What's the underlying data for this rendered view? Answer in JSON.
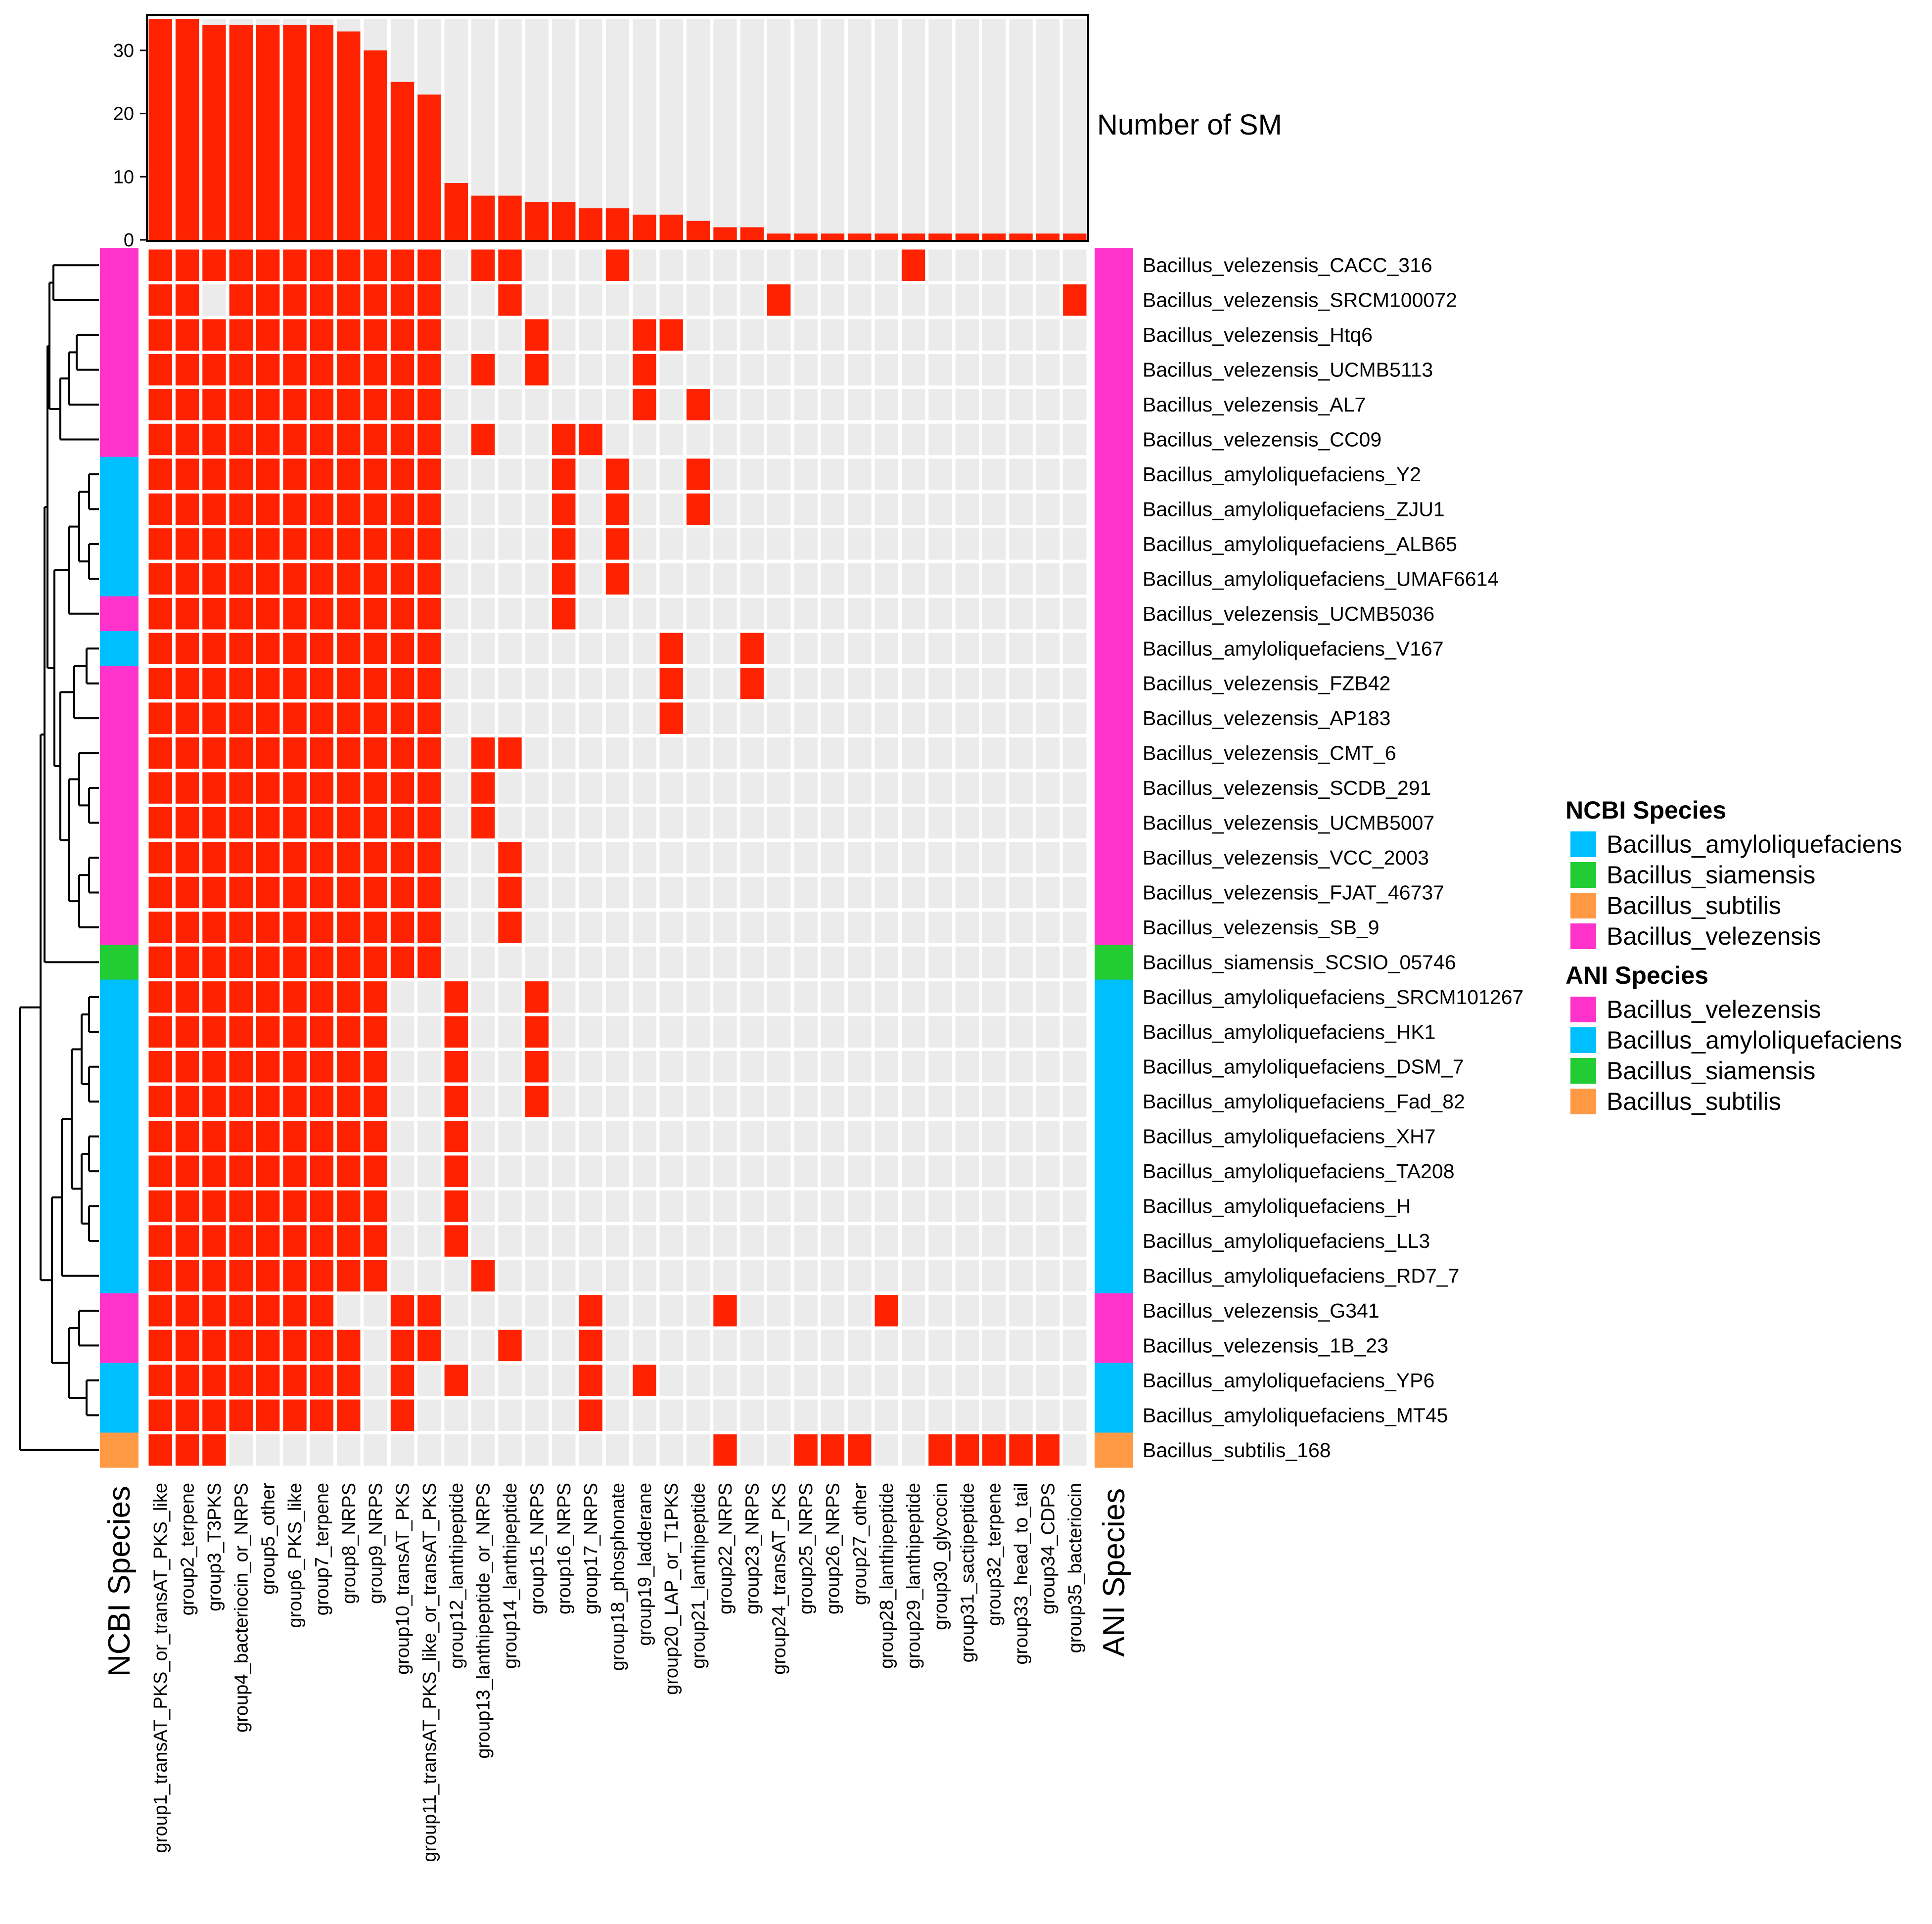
{
  "chart_data": {
    "type": "heatmap",
    "title": "",
    "colors": {
      "present": "#FF2200",
      "absent": "#EBEBEB",
      "bar": "#FF2200",
      "bar_background": "#EBEBEB",
      "species": {
        "Bacillus_amyloliquefaciens": "#00BFFF",
        "Bacillus_siamensis": "#22CC33",
        "Bacillus_subtilis": "#FF9944",
        "Bacillus_velezensis": "#FF33CC"
      }
    },
    "columns": [
      "group1_transAT_PKS_or_transAT_PKS_like",
      "group2_terpene",
      "group3_T3PKS",
      "group4_bacteriocin_or_NRPS",
      "group5_other",
      "group6_PKS_like",
      "group7_terpene",
      "group8_NRPS",
      "group9_NRPS",
      "group10_transAT_PKS",
      "group11_transAT_PKS_like_or_transAT_PKS",
      "group12_lanthipeptide",
      "group13_lanthipeptide_or_NRPS",
      "group14_lanthipeptide",
      "group15_NRPS",
      "group16_NRPS",
      "group17_NRPS",
      "group18_phosphonate",
      "group19_ladderane",
      "group20_LAP_or_T1PKS",
      "group21_lanthipeptide",
      "group22_NRPS",
      "group23_NRPS",
      "group24_transAT_PKS",
      "group25_NRPS",
      "group26_NRPS",
      "group27_other",
      "group28_lanthipeptide",
      "group29_lanthipeptide",
      "group30_glycocin",
      "group31_sactipeptide",
      "group32_terpene",
      "group33_head_to_tail",
      "group34_CDPS",
      "group35_bacteriocin"
    ],
    "bar_chart": {
      "ylabel": "Number of SM",
      "ylim": [
        0,
        35
      ],
      "yticks": [
        "0",
        "10",
        "20",
        "30"
      ],
      "values": [
        35,
        35,
        34,
        34,
        34,
        34,
        34,
        33,
        30,
        25,
        23,
        9,
        7,
        7,
        6,
        6,
        5,
        5,
        4,
        4,
        3,
        2,
        2,
        1,
        1,
        1,
        1,
        1,
        1,
        1,
        1,
        1,
        1,
        1,
        1
      ]
    },
    "rows": [
      {
        "label": "Bacillus_velezensis_CACC_316",
        "ncbi": "Bacillus_velezensis",
        "ani": "Bacillus_velezensis",
        "present": [
          1,
          2,
          3,
          4,
          5,
          6,
          7,
          8,
          9,
          10,
          11,
          13,
          14,
          18,
          29
        ]
      },
      {
        "label": "Bacillus_velezensis_SRCM100072",
        "ncbi": "Bacillus_velezensis",
        "ani": "Bacillus_velezensis",
        "present": [
          1,
          2,
          4,
          5,
          6,
          7,
          8,
          9,
          10,
          11,
          14,
          24,
          35
        ]
      },
      {
        "label": "Bacillus_velezensis_Htq6",
        "ncbi": "Bacillus_velezensis",
        "ani": "Bacillus_velezensis",
        "present": [
          1,
          2,
          3,
          4,
          5,
          6,
          7,
          8,
          9,
          10,
          11,
          15,
          19,
          20
        ]
      },
      {
        "label": "Bacillus_velezensis_UCMB5113",
        "ncbi": "Bacillus_velezensis",
        "ani": "Bacillus_velezensis",
        "present": [
          1,
          2,
          3,
          4,
          5,
          6,
          7,
          8,
          9,
          10,
          11,
          13,
          15,
          19
        ]
      },
      {
        "label": "Bacillus_velezensis_AL7",
        "ncbi": "Bacillus_velezensis",
        "ani": "Bacillus_velezensis",
        "present": [
          1,
          2,
          3,
          4,
          5,
          6,
          7,
          8,
          9,
          10,
          11,
          19,
          21
        ]
      },
      {
        "label": "Bacillus_velezensis_CC09",
        "ncbi": "Bacillus_velezensis",
        "ani": "Bacillus_velezensis",
        "present": [
          1,
          2,
          3,
          4,
          5,
          6,
          7,
          8,
          9,
          10,
          11,
          13,
          16,
          17
        ]
      },
      {
        "label": "Bacillus_amyloliquefaciens_Y2",
        "ncbi": "Bacillus_amyloliquefaciens",
        "ani": "Bacillus_velezensis",
        "present": [
          1,
          2,
          3,
          4,
          5,
          6,
          7,
          8,
          9,
          10,
          11,
          16,
          18,
          21
        ]
      },
      {
        "label": "Bacillus_amyloliquefaciens_ZJU1",
        "ncbi": "Bacillus_amyloliquefaciens",
        "ani": "Bacillus_velezensis",
        "present": [
          1,
          2,
          3,
          4,
          5,
          6,
          7,
          8,
          9,
          10,
          11,
          16,
          18,
          21
        ]
      },
      {
        "label": "Bacillus_amyloliquefaciens_ALB65",
        "ncbi": "Bacillus_amyloliquefaciens",
        "ani": "Bacillus_velezensis",
        "present": [
          1,
          2,
          3,
          4,
          5,
          6,
          7,
          8,
          9,
          10,
          11,
          16,
          18
        ]
      },
      {
        "label": "Bacillus_amyloliquefaciens_UMAF6614",
        "ncbi": "Bacillus_amyloliquefaciens",
        "ani": "Bacillus_velezensis",
        "present": [
          1,
          2,
          3,
          4,
          5,
          6,
          7,
          8,
          9,
          10,
          11,
          16,
          18
        ]
      },
      {
        "label": "Bacillus_velezensis_UCMB5036",
        "ncbi": "Bacillus_velezensis",
        "ani": "Bacillus_velezensis",
        "present": [
          1,
          2,
          3,
          4,
          5,
          6,
          7,
          8,
          9,
          10,
          11,
          16
        ]
      },
      {
        "label": "Bacillus_amyloliquefaciens_V167",
        "ncbi": "Bacillus_amyloliquefaciens",
        "ani": "Bacillus_velezensis",
        "present": [
          1,
          2,
          3,
          4,
          5,
          6,
          7,
          8,
          9,
          10,
          11,
          20,
          23
        ]
      },
      {
        "label": "Bacillus_velezensis_FZB42",
        "ncbi": "Bacillus_velezensis",
        "ani": "Bacillus_velezensis",
        "present": [
          1,
          2,
          3,
          4,
          5,
          6,
          7,
          8,
          9,
          10,
          11,
          20,
          23
        ]
      },
      {
        "label": "Bacillus_velezensis_AP183",
        "ncbi": "Bacillus_velezensis",
        "ani": "Bacillus_velezensis",
        "present": [
          1,
          2,
          3,
          4,
          5,
          6,
          7,
          8,
          9,
          10,
          11,
          20
        ]
      },
      {
        "label": "Bacillus_velezensis_CMT_6",
        "ncbi": "Bacillus_velezensis",
        "ani": "Bacillus_velezensis",
        "present": [
          1,
          2,
          3,
          4,
          5,
          6,
          7,
          8,
          9,
          10,
          11,
          13,
          14
        ]
      },
      {
        "label": "Bacillus_velezensis_SCDB_291",
        "ncbi": "Bacillus_velezensis",
        "ani": "Bacillus_velezensis",
        "present": [
          1,
          2,
          3,
          4,
          5,
          6,
          7,
          8,
          9,
          10,
          11,
          13
        ]
      },
      {
        "label": "Bacillus_velezensis_UCMB5007",
        "ncbi": "Bacillus_velezensis",
        "ani": "Bacillus_velezensis",
        "present": [
          1,
          2,
          3,
          4,
          5,
          6,
          7,
          8,
          9,
          10,
          11,
          13
        ]
      },
      {
        "label": "Bacillus_velezensis_VCC_2003",
        "ncbi": "Bacillus_velezensis",
        "ani": "Bacillus_velezensis",
        "present": [
          1,
          2,
          3,
          4,
          5,
          6,
          7,
          8,
          9,
          10,
          11,
          14
        ]
      },
      {
        "label": "Bacillus_velezensis_FJAT_46737",
        "ncbi": "Bacillus_velezensis",
        "ani": "Bacillus_velezensis",
        "present": [
          1,
          2,
          3,
          4,
          5,
          6,
          7,
          8,
          9,
          10,
          11,
          14
        ]
      },
      {
        "label": "Bacillus_velezensis_SB_9",
        "ncbi": "Bacillus_velezensis",
        "ani": "Bacillus_velezensis",
        "present": [
          1,
          2,
          3,
          4,
          5,
          6,
          7,
          8,
          9,
          10,
          11,
          14
        ]
      },
      {
        "label": "Bacillus_siamensis_SCSIO_05746",
        "ncbi": "Bacillus_siamensis",
        "ani": "Bacillus_siamensis",
        "present": [
          1,
          2,
          3,
          4,
          5,
          6,
          7,
          8,
          9,
          10,
          11
        ]
      },
      {
        "label": "Bacillus_amyloliquefaciens_SRCM101267",
        "ncbi": "Bacillus_amyloliquefaciens",
        "ani": "Bacillus_amyloliquefaciens",
        "present": [
          1,
          2,
          3,
          4,
          5,
          6,
          7,
          8,
          9,
          12,
          15
        ]
      },
      {
        "label": "Bacillus_amyloliquefaciens_HK1",
        "ncbi": "Bacillus_amyloliquefaciens",
        "ani": "Bacillus_amyloliquefaciens",
        "present": [
          1,
          2,
          3,
          4,
          5,
          6,
          7,
          8,
          9,
          12,
          15
        ]
      },
      {
        "label": "Bacillus_amyloliquefaciens_DSM_7",
        "ncbi": "Bacillus_amyloliquefaciens",
        "ani": "Bacillus_amyloliquefaciens",
        "present": [
          1,
          2,
          3,
          4,
          5,
          6,
          7,
          8,
          9,
          12,
          15
        ]
      },
      {
        "label": "Bacillus_amyloliquefaciens_Fad_82",
        "ncbi": "Bacillus_amyloliquefaciens",
        "ani": "Bacillus_amyloliquefaciens",
        "present": [
          1,
          2,
          3,
          4,
          5,
          6,
          7,
          8,
          9,
          12,
          15
        ]
      },
      {
        "label": "Bacillus_amyloliquefaciens_XH7",
        "ncbi": "Bacillus_amyloliquefaciens",
        "ani": "Bacillus_amyloliquefaciens",
        "present": [
          1,
          2,
          3,
          4,
          5,
          6,
          7,
          8,
          9,
          12
        ]
      },
      {
        "label": "Bacillus_amyloliquefaciens_TA208",
        "ncbi": "Bacillus_amyloliquefaciens",
        "ani": "Bacillus_amyloliquefaciens",
        "present": [
          1,
          2,
          3,
          4,
          5,
          6,
          7,
          8,
          9,
          12
        ]
      },
      {
        "label": "Bacillus_amyloliquefaciens_H",
        "ncbi": "Bacillus_amyloliquefaciens",
        "ani": "Bacillus_amyloliquefaciens",
        "present": [
          1,
          2,
          3,
          4,
          5,
          6,
          7,
          8,
          9,
          12
        ]
      },
      {
        "label": "Bacillus_amyloliquefaciens_LL3",
        "ncbi": "Bacillus_amyloliquefaciens",
        "ani": "Bacillus_amyloliquefaciens",
        "present": [
          1,
          2,
          3,
          4,
          5,
          6,
          7,
          8,
          9,
          12
        ]
      },
      {
        "label": "Bacillus_amyloliquefaciens_RD7_7",
        "ncbi": "Bacillus_amyloliquefaciens",
        "ani": "Bacillus_amyloliquefaciens",
        "present": [
          1,
          2,
          3,
          4,
          5,
          6,
          7,
          8,
          9,
          13
        ]
      },
      {
        "label": "Bacillus_velezensis_G341",
        "ncbi": "Bacillus_velezensis",
        "ani": "Bacillus_velezensis",
        "present": [
          1,
          2,
          3,
          4,
          5,
          6,
          7,
          10,
          11,
          17,
          22,
          28
        ]
      },
      {
        "label": "Bacillus_velezensis_1B_23",
        "ncbi": "Bacillus_velezensis",
        "ani": "Bacillus_velezensis",
        "present": [
          1,
          2,
          3,
          4,
          5,
          6,
          7,
          8,
          10,
          11,
          14,
          17
        ]
      },
      {
        "label": "Bacillus_amyloliquefaciens_YP6",
        "ncbi": "Bacillus_amyloliquefaciens",
        "ani": "Bacillus_amyloliquefaciens",
        "present": [
          1,
          2,
          3,
          4,
          5,
          6,
          7,
          8,
          10,
          12,
          17,
          19
        ]
      },
      {
        "label": "Bacillus_amyloliquefaciens_MT45",
        "ncbi": "Bacillus_amyloliquefaciens",
        "ani": "Bacillus_amyloliquefaciens",
        "present": [
          1,
          2,
          3,
          4,
          5,
          6,
          7,
          8,
          10,
          17
        ]
      },
      {
        "label": "Bacillus_subtilis_168",
        "ncbi": "Bacillus_subtilis",
        "ani": "Bacillus_subtilis",
        "present": [
          1,
          2,
          3,
          22,
          25,
          26,
          27,
          30,
          31,
          32,
          33,
          34
        ]
      }
    ],
    "annotation_labels": {
      "ncbi": "NCBI Species",
      "ani": "ANI Species"
    },
    "legend": {
      "placement": "right",
      "groups": [
        {
          "title": "NCBI Species",
          "items": [
            "Bacillus_amyloliquefaciens",
            "Bacillus_siamensis",
            "Bacillus_subtilis",
            "Bacillus_velezensis"
          ]
        },
        {
          "title": "ANI Species",
          "items": [
            "Bacillus_velezensis",
            "Bacillus_amyloliquefaciens",
            "Bacillus_siamensis",
            "Bacillus_subtilis"
          ]
        }
      ]
    }
  }
}
